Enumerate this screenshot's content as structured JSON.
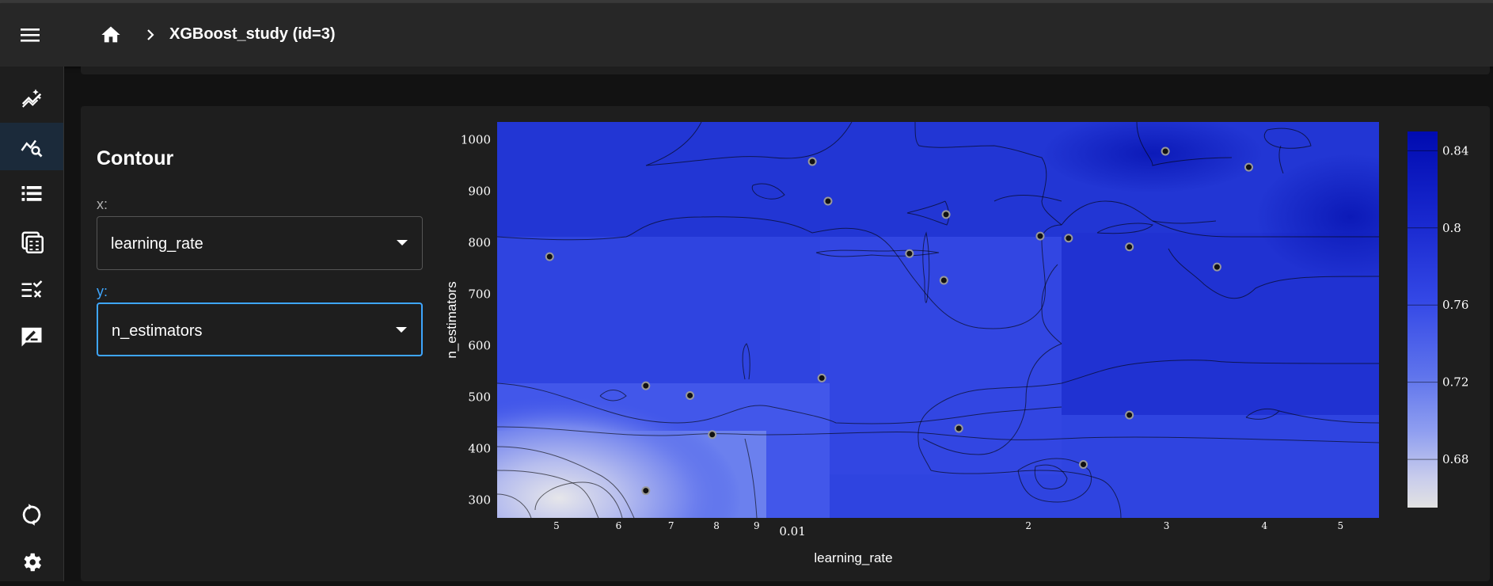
{
  "header": {
    "title": "XGBoost_study (id=3)"
  },
  "sidebar": {
    "items": [
      {
        "icon": "auto-graph-icon",
        "active": false
      },
      {
        "icon": "query-stats-icon",
        "active": true
      },
      {
        "icon": "table-rows-icon",
        "active": false
      },
      {
        "icon": "calculate-icon",
        "active": false
      },
      {
        "icon": "rule-icon",
        "active": false
      },
      {
        "icon": "rate-review-icon",
        "active": false
      }
    ],
    "bottom": [
      {
        "icon": "sync-icon"
      },
      {
        "icon": "settings-icon"
      }
    ]
  },
  "contour": {
    "title": "Contour",
    "x_label": "x:",
    "x_value": "learning_rate",
    "y_label": "y:",
    "y_value": "n_estimators"
  },
  "chart_data": {
    "type": "contour",
    "xlabel": "learning_rate",
    "ylabel": "n_estimators",
    "x_scale": "log",
    "y_range": [
      265,
      1035
    ],
    "x_range": [
      0.0042,
      0.056
    ],
    "x_ticks": [
      {
        "value": 0.005,
        "label": "5"
      },
      {
        "value": 0.006,
        "label": "6"
      },
      {
        "value": 0.007,
        "label": "7"
      },
      {
        "value": 0.008,
        "label": "8"
      },
      {
        "value": 0.009,
        "label": "9"
      },
      {
        "value": 0.01,
        "label": "0.01"
      },
      {
        "value": 0.02,
        "label": "2"
      },
      {
        "value": 0.03,
        "label": "3"
      },
      {
        "value": 0.04,
        "label": "4"
      },
      {
        "value": 0.05,
        "label": "5"
      }
    ],
    "y_ticks": [
      300,
      400,
      500,
      600,
      700,
      800,
      900,
      1000
    ],
    "colorbar": {
      "ticks": [
        "0.84",
        "0.8",
        "0.76",
        "0.72",
        "0.68"
      ],
      "values": [
        0.84,
        0.8,
        0.76,
        0.72,
        0.68
      ],
      "range": [
        0.655,
        0.85
      ],
      "colors": [
        "#000bb0",
        "#1a2ad0",
        "#3448e6",
        "#5f74ec",
        "#909ff0",
        "#c8ccec",
        "#e2e2e2"
      ]
    },
    "points": [
      {
        "x": 0.0049,
        "y": 773
      },
      {
        "x": 0.0106,
        "y": 958
      },
      {
        "x": 0.0111,
        "y": 881
      },
      {
        "x": 0.0141,
        "y": 779
      },
      {
        "x": 0.0157,
        "y": 855
      },
      {
        "x": 0.0156,
        "y": 727
      },
      {
        "x": 0.0207,
        "y": 813
      },
      {
        "x": 0.0225,
        "y": 809
      },
      {
        "x": 0.0269,
        "y": 792
      },
      {
        "x": 0.0299,
        "y": 978
      },
      {
        "x": 0.0382,
        "y": 947
      },
      {
        "x": 0.0348,
        "y": 753
      },
      {
        "x": 0.0065,
        "y": 522
      },
      {
        "x": 0.0074,
        "y": 503
      },
      {
        "x": 0.0109,
        "y": 537
      },
      {
        "x": 0.0079,
        "y": 427
      },
      {
        "x": 0.0163,
        "y": 439
      },
      {
        "x": 0.0269,
        "y": 465
      },
      {
        "x": 0.0235,
        "y": 369
      },
      {
        "x": 0.0065,
        "y": 318
      }
    ]
  }
}
